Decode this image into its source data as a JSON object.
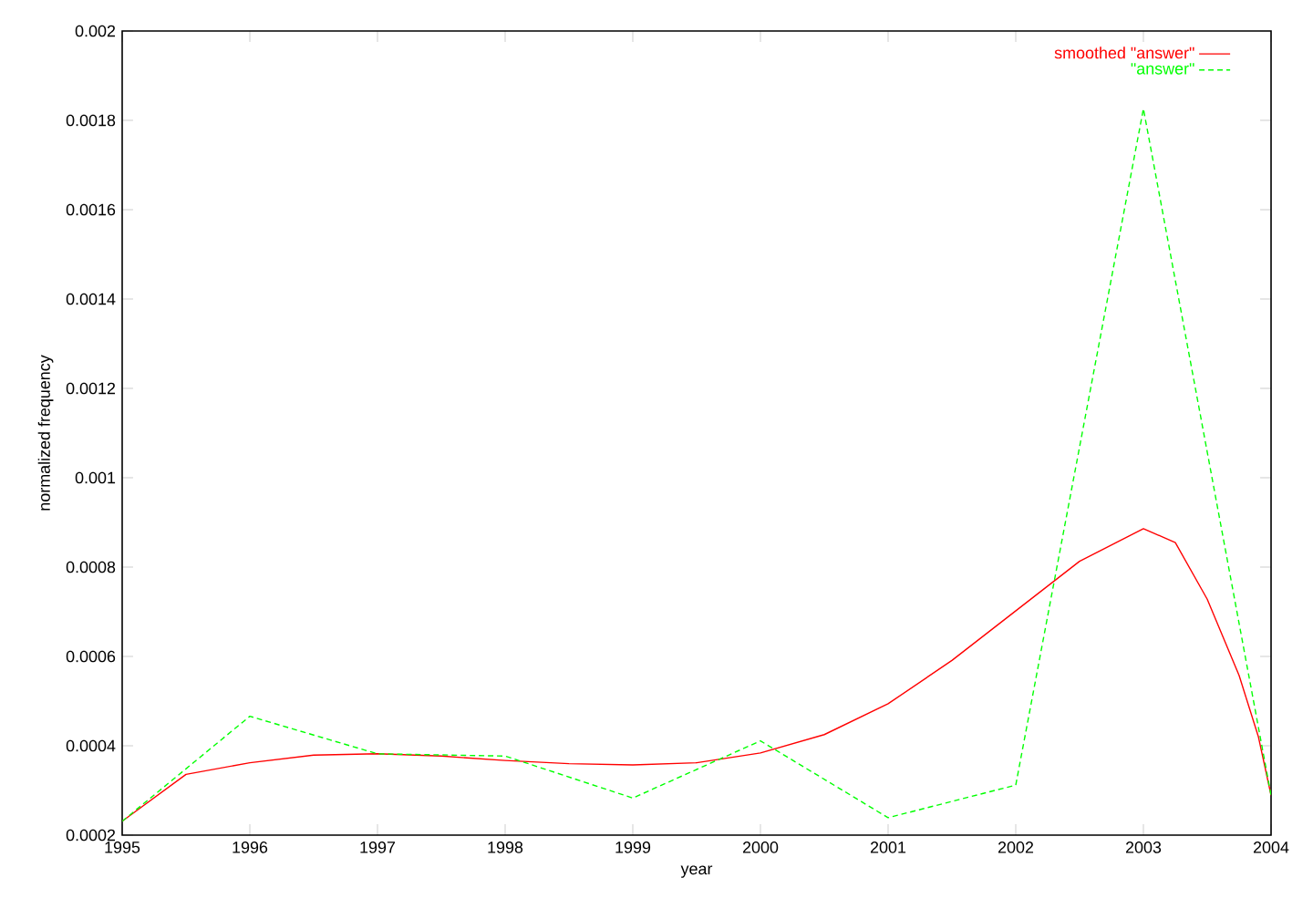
{
  "chart_data": {
    "type": "line",
    "xlabel": "year",
    "ylabel": "normalized frequency",
    "xlim": [
      1995,
      2004
    ],
    "ylim": [
      0.0002,
      0.002
    ],
    "xticks": [
      1995,
      1996,
      1997,
      1998,
      1999,
      2000,
      2001,
      2002,
      2003,
      2004
    ],
    "yticks": [
      0.0002,
      0.0004,
      0.0006,
      0.0008,
      0.001,
      0.0012,
      0.0014,
      0.0016,
      0.0018,
      0.002
    ],
    "grid": false,
    "legend": "top right",
    "marker": "none",
    "series": [
      {
        "name": "smoothed \"answer\"",
        "color": "#ff0000",
        "line_style": "solid",
        "x": [
          1995,
          1995.5,
          1996,
          1996.5,
          1997,
          1997.5,
          1998,
          1998.5,
          1999,
          1999.5,
          2000,
          2000.5,
          2001,
          2001.5,
          2002,
          2002.5,
          2003,
          2003.25,
          2003.5,
          2003.75,
          2003.9,
          2004
        ],
        "values": [
          0.000231,
          0.000336,
          0.000362,
          0.000379,
          0.000382,
          0.000377,
          0.000367,
          0.00036,
          0.000357,
          0.000362,
          0.000384,
          0.000425,
          0.000494,
          0.000591,
          0.000702,
          0.000813,
          0.000886,
          0.000855,
          0.000728,
          0.000557,
          0.000421,
          0.000289
        ]
      },
      {
        "name": "\"answer\"",
        "color": "#00ff00",
        "line_style": "dashed",
        "x": [
          1995,
          1996,
          1997,
          1998,
          1999,
          2000,
          2001,
          2002,
          2003,
          2004
        ],
        "values": [
          0.000231,
          0.000466,
          0.000382,
          0.000377,
          0.000283,
          0.000411,
          0.000239,
          0.000312,
          0.001826,
          0.000289
        ]
      }
    ]
  }
}
